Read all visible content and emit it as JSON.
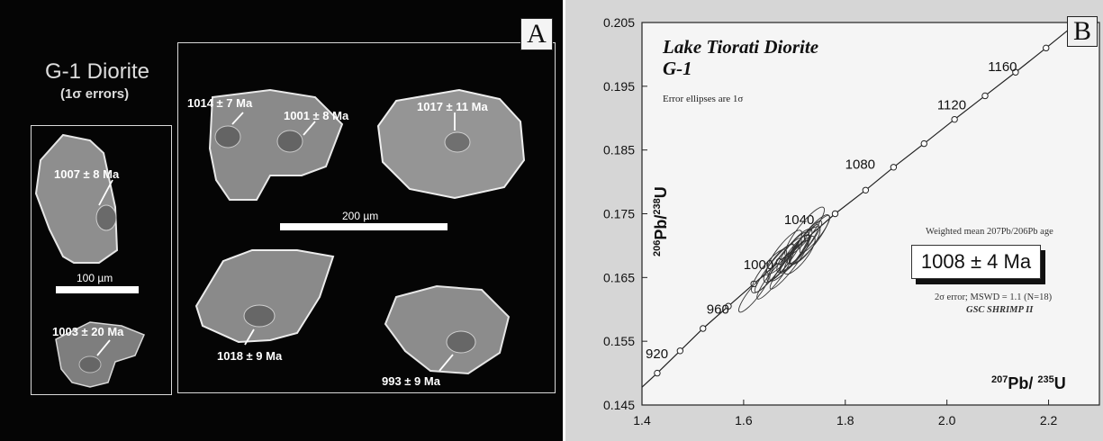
{
  "panel_a": {
    "label": "A",
    "title": "G-1 Diorite",
    "subtitle": "(1σ errors)",
    "scale_small": "100 µm",
    "scale_large": "200 µm",
    "ages": {
      "g1": "1007 ± 8 Ma",
      "g2": "1003 ± 20 Ma",
      "g3a": "1014 ± 7 Ma",
      "g3b": "1001 ± 8 Ma",
      "g4": "1017 ± 11 Ma",
      "g5": "1018 ± 9 Ma",
      "g6": "993 ± 9 Ma"
    }
  },
  "panel_b": {
    "label": "B",
    "title_line1": "Lake Tiorati Diorite",
    "title_line2": "G-1",
    "ellipse_note": "Error ellipses are 1σ",
    "weighted_mean_label": "Weighted mean 207Pb/206Pb age",
    "age_result": "1008 ± 4 Ma",
    "error_note": "2σ error; MSWD = 1.1 (N=18)",
    "instrument": "GSC SHRIMP II"
  },
  "chart_data": {
    "type": "scatter",
    "title": "Lake Tiorati Diorite G-1",
    "xlabel": "207Pb/235U",
    "ylabel": "206Pb/238U",
    "xlim": [
      1.4,
      2.3
    ],
    "ylim": [
      0.145,
      0.205
    ],
    "x_ticks": [
      "1.4",
      "1.6",
      "1.8",
      "2.0",
      "2.2"
    ],
    "y_ticks": [
      "0.145",
      "0.155",
      "0.165",
      "0.175",
      "0.185",
      "0.195",
      "0.205"
    ],
    "concordia_age_labels": [
      {
        "age": "920",
        "x": 1.44,
        "y": 0.1515
      },
      {
        "age": "960",
        "x": 1.56,
        "y": 0.1585
      },
      {
        "age": "1000",
        "x": 1.64,
        "y": 0.1655
      },
      {
        "age": "1040",
        "x": 1.72,
        "y": 0.1725
      },
      {
        "age": "1080",
        "x": 1.84,
        "y": 0.1812
      },
      {
        "age": "1120",
        "x": 2.02,
        "y": 0.1905
      },
      {
        "age": "1160",
        "x": 2.12,
        "y": 0.1965
      }
    ],
    "concordia_points": [
      {
        "x": 1.43,
        "y": 0.15
      },
      {
        "x": 1.475,
        "y": 0.1535
      },
      {
        "x": 1.52,
        "y": 0.157
      },
      {
        "x": 1.57,
        "y": 0.1605
      },
      {
        "x": 1.62,
        "y": 0.164
      },
      {
        "x": 1.67,
        "y": 0.1675
      },
      {
        "x": 1.725,
        "y": 0.1712
      },
      {
        "x": 1.78,
        "y": 0.175
      },
      {
        "x": 1.84,
        "y": 0.1787
      },
      {
        "x": 1.895,
        "y": 0.1823
      },
      {
        "x": 1.955,
        "y": 0.186
      },
      {
        "x": 2.015,
        "y": 0.1898
      },
      {
        "x": 2.075,
        "y": 0.1935
      },
      {
        "x": 2.135,
        "y": 0.1972
      },
      {
        "x": 2.195,
        "y": 0.201
      }
    ],
    "error_ellipses": [
      {
        "x": 1.62,
        "y": 0.1625
      },
      {
        "x": 1.65,
        "y": 0.166
      },
      {
        "x": 1.66,
        "y": 0.1665
      },
      {
        "x": 1.67,
        "y": 0.1672
      },
      {
        "x": 1.68,
        "y": 0.1678
      },
      {
        "x": 1.69,
        "y": 0.1683
      },
      {
        "x": 1.7,
        "y": 0.1688
      },
      {
        "x": 1.7,
        "y": 0.1692
      },
      {
        "x": 1.71,
        "y": 0.1695
      },
      {
        "x": 1.72,
        "y": 0.17
      },
      {
        "x": 1.72,
        "y": 0.1705
      },
      {
        "x": 1.73,
        "y": 0.171
      },
      {
        "x": 1.74,
        "y": 0.1718
      },
      {
        "x": 1.68,
        "y": 0.169
      },
      {
        "x": 1.69,
        "y": 0.167
      },
      {
        "x": 1.71,
        "y": 0.1685
      },
      {
        "x": 1.66,
        "y": 0.165
      },
      {
        "x": 1.72,
        "y": 0.1722
      }
    ],
    "grid": false
  }
}
